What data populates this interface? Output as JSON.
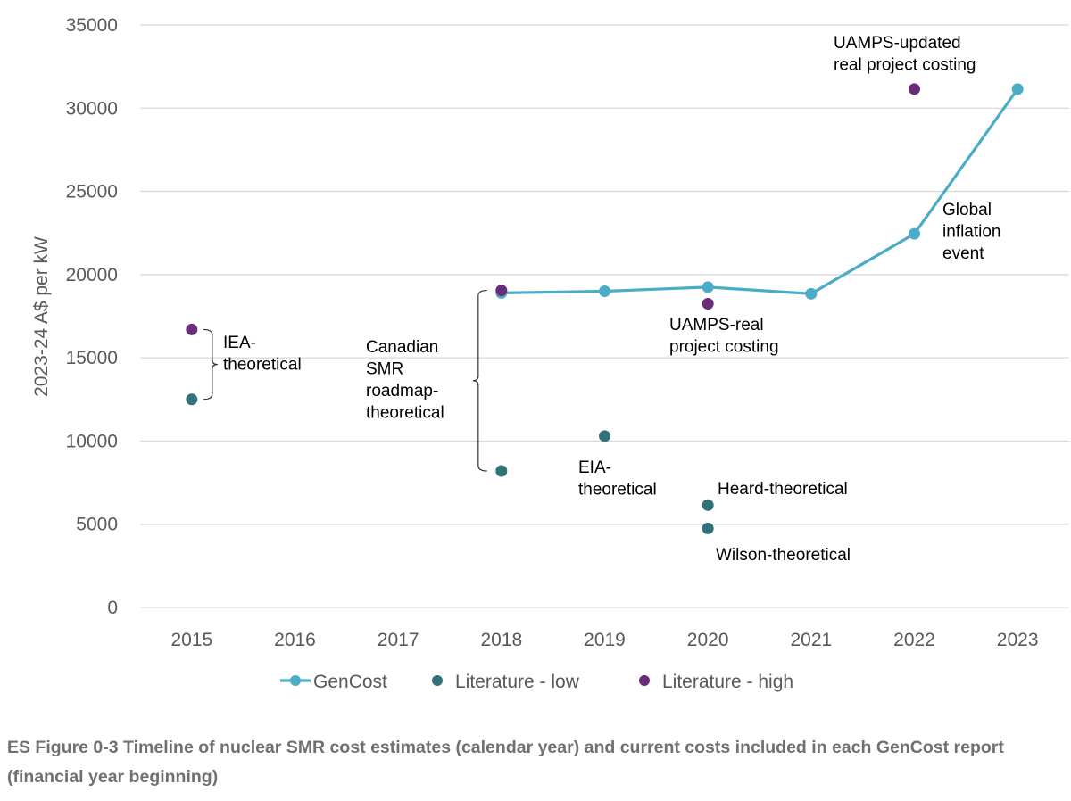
{
  "chart_data": {
    "type": "line",
    "title": "",
    "xlabel": "",
    "ylabel": "2023-24 A$ per kW",
    "ylim": [
      0,
      35000
    ],
    "yticks": [
      0,
      5000,
      10000,
      15000,
      20000,
      25000,
      30000,
      35000
    ],
    "categories": [
      "2015",
      "2016",
      "2017",
      "2018",
      "2019",
      "2020",
      "2021",
      "2022",
      "2023"
    ],
    "grid": "horizontal",
    "legend_position": "bottom",
    "series": [
      {
        "name": "GenCost",
        "kind": "line-marker",
        "color": "#4BACC6",
        "points": [
          {
            "x": "2018",
            "y": 18900
          },
          {
            "x": "2019",
            "y": 19000
          },
          {
            "x": "2020",
            "y": 19250
          },
          {
            "x": "2021",
            "y": 18850
          },
          {
            "x": "2022",
            "y": 22450
          },
          {
            "x": "2023",
            "y": 31150
          }
        ]
      },
      {
        "name": "Literature - low",
        "kind": "scatter",
        "color": "#31727A",
        "points": [
          {
            "x": "2015",
            "y": 12500
          },
          {
            "x": "2018",
            "y": 8200
          },
          {
            "x": "2019",
            "y": 10300
          },
          {
            "x": "2020",
            "y": 6150
          },
          {
            "x": "2020",
            "y": 4750
          }
        ]
      },
      {
        "name": "Literature - high",
        "kind": "scatter",
        "color": "#6A2C7A",
        "points": [
          {
            "x": "2015",
            "y": 16700
          },
          {
            "x": "2018",
            "y": 19050
          },
          {
            "x": "2020",
            "y": 18250
          },
          {
            "x": "2022",
            "y": 31150
          }
        ]
      }
    ],
    "annotations": [
      {
        "id": "iea",
        "lines": [
          "IEA-",
          "theoretical"
        ],
        "bracket": {
          "x": "2015",
          "y_top": 16700,
          "y_bottom": 12500
        }
      },
      {
        "id": "canadian",
        "lines": [
          "Canadian",
          "SMR",
          "roadmap-",
          "theoretical"
        ],
        "bracket": {
          "x": "2018",
          "y_top": 19050,
          "y_bottom": 8200
        }
      },
      {
        "id": "uamps-real",
        "lines": [
          "UAMPS-real",
          "project costing"
        ]
      },
      {
        "id": "eia",
        "lines": [
          "EIA-",
          "theoretical"
        ]
      },
      {
        "id": "heard",
        "lines": [
          "Heard-theoretical"
        ]
      },
      {
        "id": "wilson",
        "lines": [
          "Wilson-theoretical"
        ]
      },
      {
        "id": "uamps-updated",
        "lines": [
          "UAMPS-updated",
          "real project costing"
        ]
      },
      {
        "id": "global-inflation",
        "lines": [
          "Global",
          "inflation",
          "event"
        ]
      }
    ]
  },
  "caption": "ES Figure 0-3 Timeline of nuclear SMR cost estimates (calendar year) and current costs included in each GenCost report (financial year beginning)"
}
